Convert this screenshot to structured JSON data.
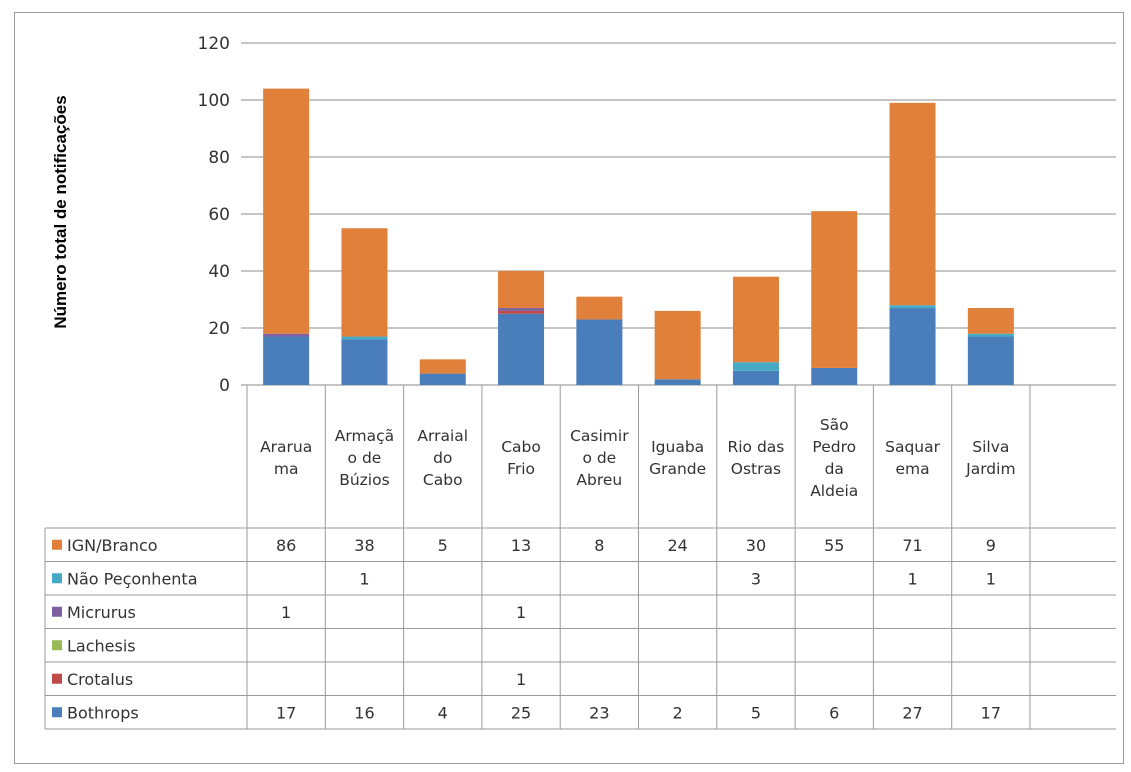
{
  "chart_data": {
    "type": "bar",
    "stacked": true,
    "ylabel": "Número total de notificações",
    "ylim": [
      0,
      120
    ],
    "yticks": [
      0,
      20,
      40,
      60,
      80,
      100,
      120
    ],
    "grid": true,
    "legend": "data-table-below",
    "categories": [
      [
        "Ararua",
        "ma"
      ],
      [
        "Armaçã",
        "o de",
        "Búzios"
      ],
      [
        "Arraial",
        "do",
        "Cabo"
      ],
      [
        "Cabo",
        "Frio"
      ],
      [
        "Casimir",
        "o de",
        "Abreu"
      ],
      [
        "Iguaba",
        "Grande"
      ],
      [
        "Rio das",
        "Ostras"
      ],
      [
        "São",
        "Pedro",
        "da",
        "Aldeia"
      ],
      [
        "Saquar",
        "ema"
      ],
      [
        "Silva",
        "Jardim"
      ]
    ],
    "series": [
      {
        "name": "Bothrops",
        "color": "#4a7ebb",
        "values": [
          17,
          16,
          4,
          25,
          23,
          2,
          5,
          6,
          27,
          17
        ]
      },
      {
        "name": "Crotalus",
        "color": "#be4b48",
        "values": [
          null,
          null,
          null,
          1,
          null,
          null,
          null,
          null,
          null,
          null
        ]
      },
      {
        "name": "Lachesis",
        "color": "#98b954",
        "values": [
          null,
          null,
          null,
          null,
          null,
          null,
          null,
          null,
          null,
          null
        ]
      },
      {
        "name": "Micrurus",
        "color": "#7d60a0",
        "values": [
          1,
          null,
          null,
          1,
          null,
          null,
          null,
          null,
          null,
          null
        ]
      },
      {
        "name": "Não Peçonhenta",
        "color": "#46aac5",
        "values": [
          null,
          1,
          null,
          null,
          null,
          null,
          3,
          null,
          1,
          1
        ]
      },
      {
        "name": "IGN/Branco",
        "color": "#e0803a",
        "values": [
          86,
          38,
          5,
          13,
          8,
          24,
          30,
          55,
          71,
          9
        ]
      }
    ]
  }
}
